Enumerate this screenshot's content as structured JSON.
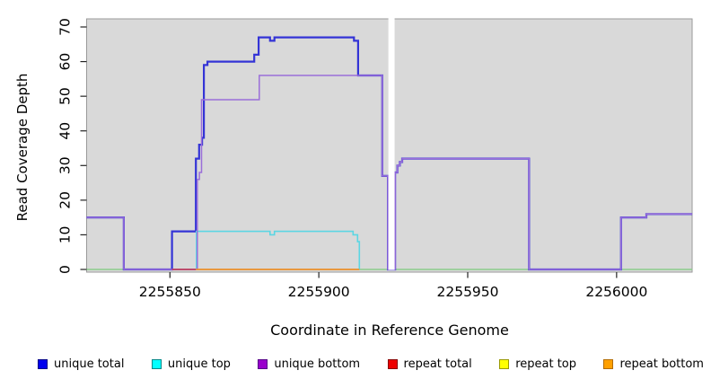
{
  "figure": {
    "x_label": "Coordinate in Reference Genome",
    "y_label": "Read Coverage Depth"
  },
  "chart_data": {
    "type": "line",
    "subtype": "step-function read coverage plot",
    "title": "",
    "xlabel": "Coordinate in Reference Genome",
    "ylabel": "Read Coverage Depth",
    "xlim": [
      2255822,
      2256025.4
    ],
    "ylim": [
      0,
      72.5
    ],
    "x_ticks": [
      2255850,
      2255900,
      2255950,
      2256000
    ],
    "y_ticks": [
      0,
      10,
      20,
      30,
      40,
      50,
      60,
      70
    ],
    "grid": false,
    "plot_background": "#d9d9d9",
    "gap_region": {
      "from": 2255923.35,
      "to": 2255925.45,
      "color": "#ffffff"
    },
    "series": [
      {
        "name": "repeat top",
        "legend_color": "#ffff00",
        "line_color": "#8ccc8c",
        "width": 1.5,
        "points": [
          [
            2255822,
            0
          ],
          [
            2256025.4,
            0
          ]
        ]
      },
      {
        "name": "unique total",
        "legend_color": "#0000ff",
        "line_color": "#3434d6",
        "width": 2.2,
        "points": [
          [
            2255822,
            15
          ],
          [
            2255834.5,
            0
          ],
          [
            2255850.7,
            11
          ],
          [
            2255858.7,
            32
          ],
          [
            2255859.8,
            36
          ],
          [
            2255860.8,
            38
          ],
          [
            2255861.4,
            59
          ],
          [
            2255862.6,
            60
          ],
          [
            2255878.3,
            62
          ],
          [
            2255879.8,
            67
          ],
          [
            2255883.6,
            66
          ],
          [
            2255885.1,
            67
          ],
          [
            2255911.8,
            66
          ],
          [
            2255913.2,
            56
          ],
          [
            2255921.3,
            27
          ],
          [
            2255923.2,
            0
          ],
          [
            2255925.6,
            28
          ],
          [
            2255926.4,
            30
          ],
          [
            2255927.2,
            31
          ],
          [
            2255928,
            32
          ],
          [
            2255970.6,
            0
          ],
          [
            2256001.5,
            15
          ],
          [
            2256010,
            16
          ],
          [
            2256025.4,
            16
          ]
        ]
      },
      {
        "name": "unique top",
        "legend_color": "#00ffff",
        "line_color": "#5cd6e3",
        "width": 1.6,
        "points": [
          [
            2255858.7,
            0
          ],
          [
            2255858.9,
            11
          ],
          [
            2255883.6,
            10
          ],
          [
            2255885.1,
            11
          ],
          [
            2255911.5,
            10
          ],
          [
            2255913,
            8
          ],
          [
            2255913.6,
            0
          ]
        ]
      },
      {
        "name": "unique bottom",
        "legend_color": "#9900cc",
        "line_color": "#9b6fd9",
        "width": 1.5,
        "points": [
          [
            2255822,
            15
          ],
          [
            2255834.5,
            0
          ],
          [
            2255859.2,
            26
          ],
          [
            2255859.9,
            28
          ],
          [
            2255860.6,
            49
          ],
          [
            2255880,
            56
          ],
          [
            2255921.3,
            27
          ],
          [
            2255923.2,
            0
          ],
          [
            2255925.6,
            28
          ],
          [
            2255926.4,
            30
          ],
          [
            2255927.2,
            31
          ],
          [
            2255928,
            32
          ],
          [
            2255970.6,
            0
          ],
          [
            2256001.5,
            15
          ],
          [
            2256010,
            16
          ],
          [
            2256025.4,
            16
          ]
        ]
      },
      {
        "name": "repeat total",
        "legend_color": "#ff0000",
        "line_color": "#c04060",
        "width": 1.8,
        "points": [
          [
            2255850.7,
            0
          ],
          [
            2255858.7,
            0
          ]
        ]
      },
      {
        "name": "repeat bottom",
        "legend_color": "#ffa500",
        "line_color": "#f09030",
        "width": 1.8,
        "points": [
          [
            2255858.7,
            0
          ],
          [
            2255913.6,
            0
          ]
        ]
      }
    ]
  },
  "legend": {
    "items": [
      {
        "label": "unique total",
        "color": "#0000ee",
        "border": "#000088"
      },
      {
        "label": "unique top",
        "color": "#00ffff",
        "border": "#008888"
      },
      {
        "label": "unique bottom",
        "color": "#9900cc",
        "border": "#550088"
      },
      {
        "label": "repeat total",
        "color": "#ee0000",
        "border": "#880000"
      },
      {
        "label": "repeat top",
        "color": "#ffff00",
        "border": "#999900"
      },
      {
        "label": "repeat bottom",
        "color": "#ffa000",
        "border": "#b36b00"
      }
    ]
  }
}
